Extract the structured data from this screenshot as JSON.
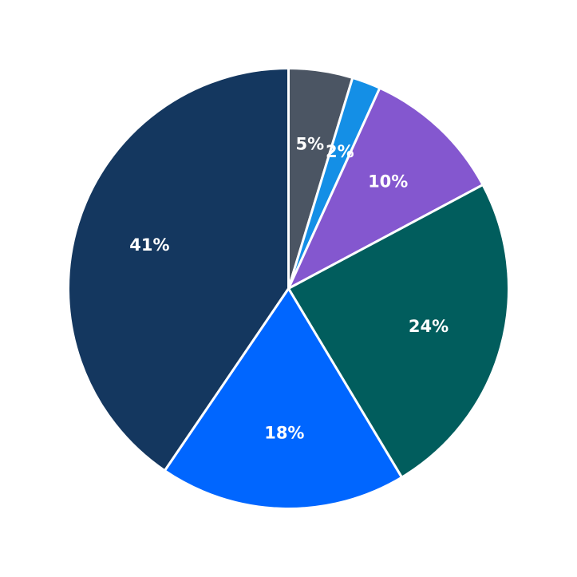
{
  "chart_data": {
    "type": "pie",
    "start_angle_deg": 90,
    "direction": "clockwise",
    "slices": [
      {
        "label": "5%",
        "value": 4.7,
        "color": "#4b5563"
      },
      {
        "label": "2%",
        "value": 2.1,
        "color": "#148fe6"
      },
      {
        "label": "10%",
        "value": 10.4,
        "color": "#8457cf"
      },
      {
        "label": "24%",
        "value": 24.2,
        "color": "#015d5d"
      },
      {
        "label": "18%",
        "value": 18.1,
        "color": "#0066ff"
      },
      {
        "label": "41%",
        "value": 40.5,
        "color": "#14375f"
      }
    ]
  }
}
